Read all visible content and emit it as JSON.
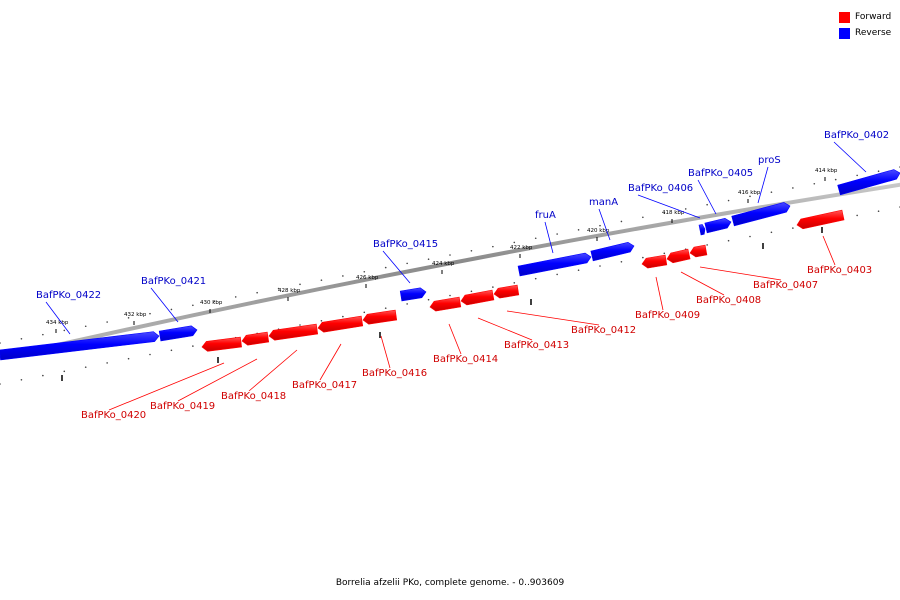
{
  "legend": {
    "forward_label": "Forward",
    "reverse_label": "Reverse",
    "forward_color": "#ff0000",
    "reverse_color": "#0000ff"
  },
  "caption": "Borrelia afzelii PKo, complete genome. - 0..903609",
  "ruler": {
    "ticks": [
      {
        "kbp": 414,
        "label": "414 kbp"
      },
      {
        "kbp": 416,
        "label": "416 kbp"
      },
      {
        "kbp": 418,
        "label": "418 kbp"
      },
      {
        "kbp": 420,
        "label": "420 kbp"
      },
      {
        "kbp": 422,
        "label": "422 kbp"
      },
      {
        "kbp": 424,
        "label": "424 kbp"
      },
      {
        "kbp": 426,
        "label": "426 kbp"
      },
      {
        "kbp": 428,
        "label": "428 kbp"
      },
      {
        "kbp": 430,
        "label": "430 kbp"
      },
      {
        "kbp": 432,
        "label": "432 kbp"
      },
      {
        "kbp": 434,
        "label": "434 kbp"
      }
    ]
  },
  "genes": [
    {
      "name": "BafPKo_0402",
      "strand": "reverse"
    },
    {
      "name": "pros",
      "label": "proS",
      "strand": "reverse"
    },
    {
      "name": "BafPKo_0405",
      "strand": "reverse"
    },
    {
      "name": "BafPKo_0406",
      "strand": "reverse"
    },
    {
      "name": "manA",
      "strand": "reverse"
    },
    {
      "name": "fruA",
      "strand": "reverse"
    },
    {
      "name": "BafPKo_0415",
      "strand": "reverse"
    },
    {
      "name": "BafPKo_0421",
      "strand": "reverse"
    },
    {
      "name": "BafPKo_0422",
      "strand": "reverse"
    },
    {
      "name": "BafPKo_0403",
      "strand": "forward"
    },
    {
      "name": "BafPKo_0407",
      "strand": "forward"
    },
    {
      "name": "BafPKo_0408",
      "strand": "forward"
    },
    {
      "name": "BafPKo_0409",
      "strand": "forward"
    },
    {
      "name": "BafPKo_0412",
      "strand": "forward"
    },
    {
      "name": "BafPKo_0413",
      "strand": "forward"
    },
    {
      "name": "BafPKo_0414",
      "strand": "forward"
    },
    {
      "name": "BafPKo_0416",
      "strand": "forward"
    },
    {
      "name": "BafPKo_0417",
      "strand": "forward"
    },
    {
      "name": "BafPKo_0418",
      "strand": "forward"
    },
    {
      "name": "BafPKo_0419",
      "strand": "forward"
    },
    {
      "name": "BafPKo_0420",
      "strand": "forward"
    }
  ]
}
